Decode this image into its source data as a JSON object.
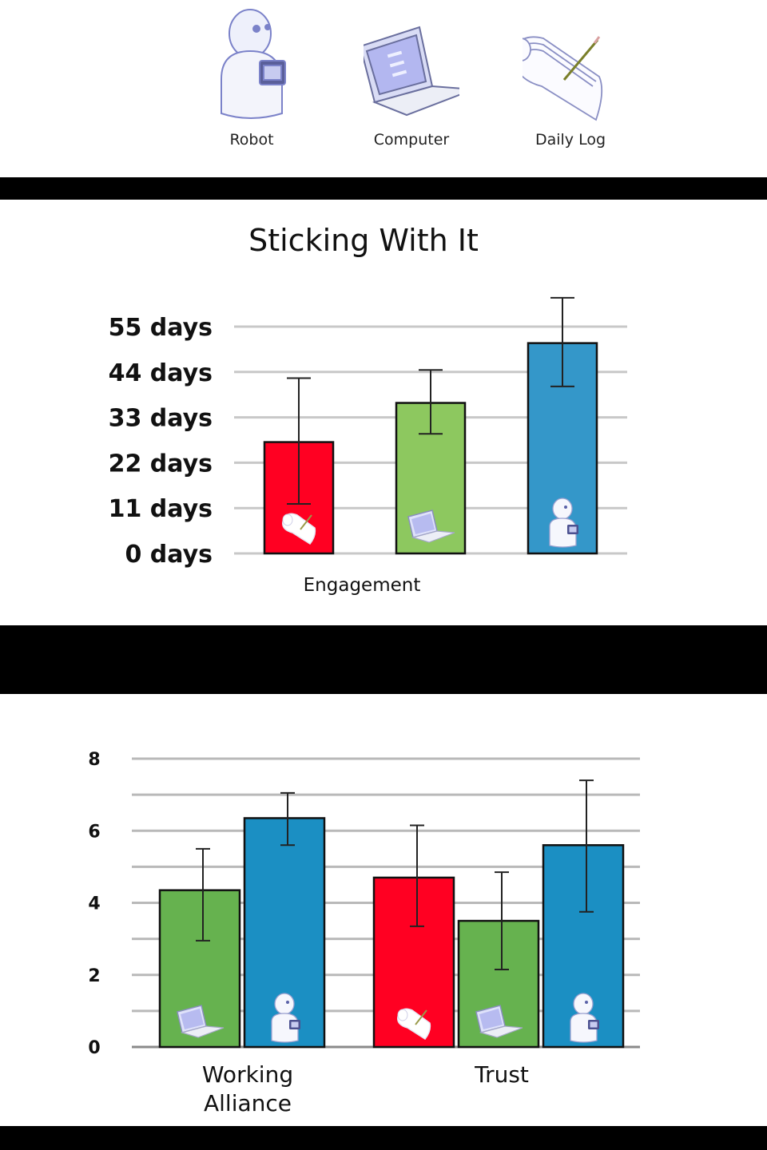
{
  "legend": {
    "items": [
      {
        "label": "Robot",
        "icon": "robot-icon"
      },
      {
        "label": "Computer",
        "icon": "laptop-icon"
      },
      {
        "label": "Daily Log",
        "icon": "notepad-icon"
      }
    ]
  },
  "colors": {
    "daily_log": "#ff0022",
    "computer": "#8dc85f",
    "robot": "#3497c9",
    "chart2_computer": "#66b24f",
    "chart2_robot": "#1b8fc3",
    "grid": "#c8c8c8"
  },
  "chart_data": [
    {
      "type": "bar",
      "title": "Sticking With It",
      "xlabel": "Engagement",
      "ylabel": "",
      "ylim": [
        0,
        60
      ],
      "yticks": [
        0,
        11,
        22,
        33,
        44,
        55
      ],
      "ytick_labels": [
        "0 days",
        "11 days",
        "22 days",
        "33 days",
        "44 days",
        "55 days"
      ],
      "categories": [
        "Engagement"
      ],
      "series": [
        {
          "icon": "notepad-icon",
          "color": "#ff0022",
          "values": [
            27
          ],
          "error_low": [
            12
          ],
          "error_high": [
            42.5
          ]
        },
        {
          "icon": "laptop-icon",
          "color": "#8dc85f",
          "values": [
            36.5
          ],
          "error_low": [
            29
          ],
          "error_high": [
            44.5
          ]
        },
        {
          "icon": "robot-icon",
          "color": "#3497c9",
          "values": [
            51
          ],
          "error_low": [
            40.5
          ],
          "error_high": [
            62
          ]
        }
      ],
      "grid": true
    },
    {
      "type": "bar",
      "title": "",
      "xlabel": "",
      "ylabel": "",
      "ylim": [
        0,
        8
      ],
      "yticks": [
        0,
        2,
        4,
        6,
        8
      ],
      "ytick_labels": [
        "0",
        "2",
        "4",
        "6",
        "8"
      ],
      "minor_gridlines": [
        1,
        3,
        5,
        7
      ],
      "groups": [
        {
          "label_lines": [
            "Working",
            "Alliance"
          ],
          "bars": [
            {
              "icon": "laptop-icon",
              "color": "#66b24f",
              "value": 4.35,
              "error_low": 2.95,
              "error_high": 5.5
            },
            {
              "icon": "robot-icon",
              "color": "#1b8fc3",
              "value": 6.35,
              "error_low": 5.6,
              "error_high": 7.05
            }
          ]
        },
        {
          "label_lines": [
            "Trust"
          ],
          "bars": [
            {
              "icon": "notepad-icon",
              "color": "#ff0022",
              "value": 4.7,
              "error_low": 3.35,
              "error_high": 6.15
            },
            {
              "icon": "laptop-icon",
              "color": "#66b24f",
              "value": 3.5,
              "error_low": 2.15,
              "error_high": 4.85
            },
            {
              "icon": "robot-icon",
              "color": "#1b8fc3",
              "value": 5.6,
              "error_low": 3.75,
              "error_high": 7.4
            }
          ]
        }
      ],
      "grid": true
    }
  ]
}
